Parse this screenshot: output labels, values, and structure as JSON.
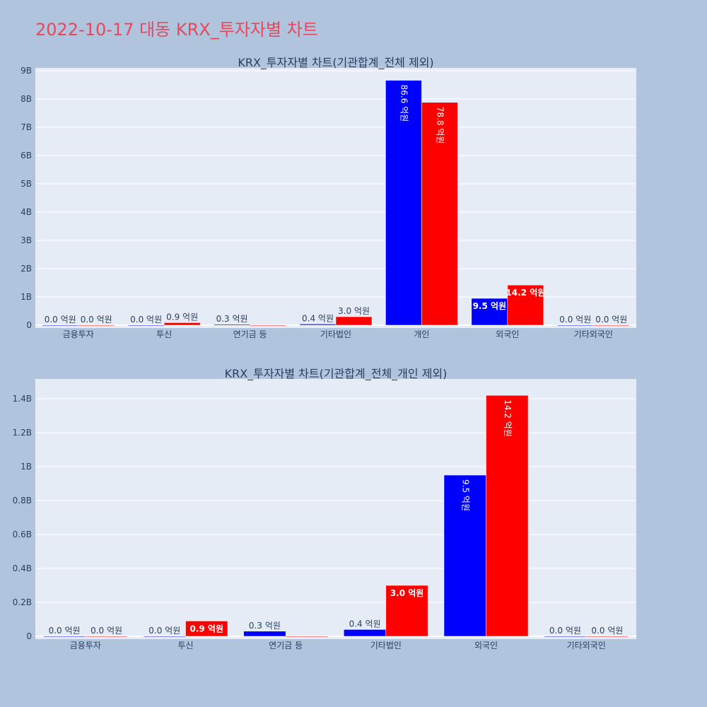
{
  "page_title": "2022-10-17 대동 KRX_투자자별 차트",
  "colors": {
    "title": "#e8485a",
    "background": "#b0c4de",
    "plot_bg": "#e5ecf6",
    "buy": "#0000ff",
    "sell": "#ff0000"
  },
  "chart_data": [
    {
      "type": "bar",
      "title": "KRX_투자자별 차트(기관합계_전체 제외)",
      "categories": [
        "금융투자",
        "투신",
        "연기금 등",
        "기타법인",
        "개인",
        "외국인",
        "기타외국인"
      ],
      "series": [
        {
          "color": "#0000ff",
          "values": [
            0,
            0,
            30000000,
            40000000,
            8660000000,
            950000000,
            0
          ],
          "labels": [
            "0.0 억원",
            "0.0 억원",
            "0.3 억원",
            "0.4 억원",
            "86.6 억원",
            "9.5 억원",
            "0.0 억원"
          ]
        },
        {
          "color": "#ff0000",
          "values": [
            0,
            90000000,
            0,
            300000000,
            7880000000,
            1420000000,
            0
          ],
          "labels": [
            "0.0 억원",
            "0.9 억원",
            "",
            "3.0 억원",
            "78.8 억원",
            "14.2 억원",
            "0.0 억원"
          ]
        }
      ],
      "ylim": [
        0,
        9000000000
      ],
      "yticks": [
        0,
        1000000000,
        2000000000,
        3000000000,
        4000000000,
        5000000000,
        6000000000,
        7000000000,
        8000000000,
        9000000000
      ],
      "ytick_labels": [
        "0",
        "1B",
        "2B",
        "3B",
        "4B",
        "5B",
        "6B",
        "7B",
        "8B",
        "9B"
      ],
      "grid": true,
      "legend": "none"
    },
    {
      "type": "bar",
      "title": "KRX_투자자별 차트(기관합계_전체_개인 제외)",
      "categories": [
        "금융투자",
        "투신",
        "연기금 등",
        "기타법인",
        "외국인",
        "기타외국인"
      ],
      "series": [
        {
          "color": "#0000ff",
          "values": [
            0,
            0,
            30000000,
            40000000,
            950000000,
            0
          ],
          "labels": [
            "0.0 억원",
            "0.0 억원",
            "0.3 억원",
            "0.4 억원",
            "9.5 억원",
            "0.0 억원"
          ]
        },
        {
          "color": "#ff0000",
          "values": [
            0,
            90000000,
            0,
            300000000,
            1420000000,
            0
          ],
          "labels": [
            "0.0 억원",
            "0.9 억원",
            "",
            "3.0 억원",
            "14.2 억원",
            "0.0 억원"
          ]
        }
      ],
      "ylim": [
        0,
        1500000000
      ],
      "yticks": [
        0,
        200000000,
        400000000,
        600000000,
        800000000,
        1000000000,
        1200000000,
        1400000000
      ],
      "ytick_labels": [
        "0",
        "0.2B",
        "0.4B",
        "0.6B",
        "0.8B",
        "1B",
        "1.2B",
        "1.4B"
      ],
      "grid": true,
      "legend": "none"
    }
  ]
}
